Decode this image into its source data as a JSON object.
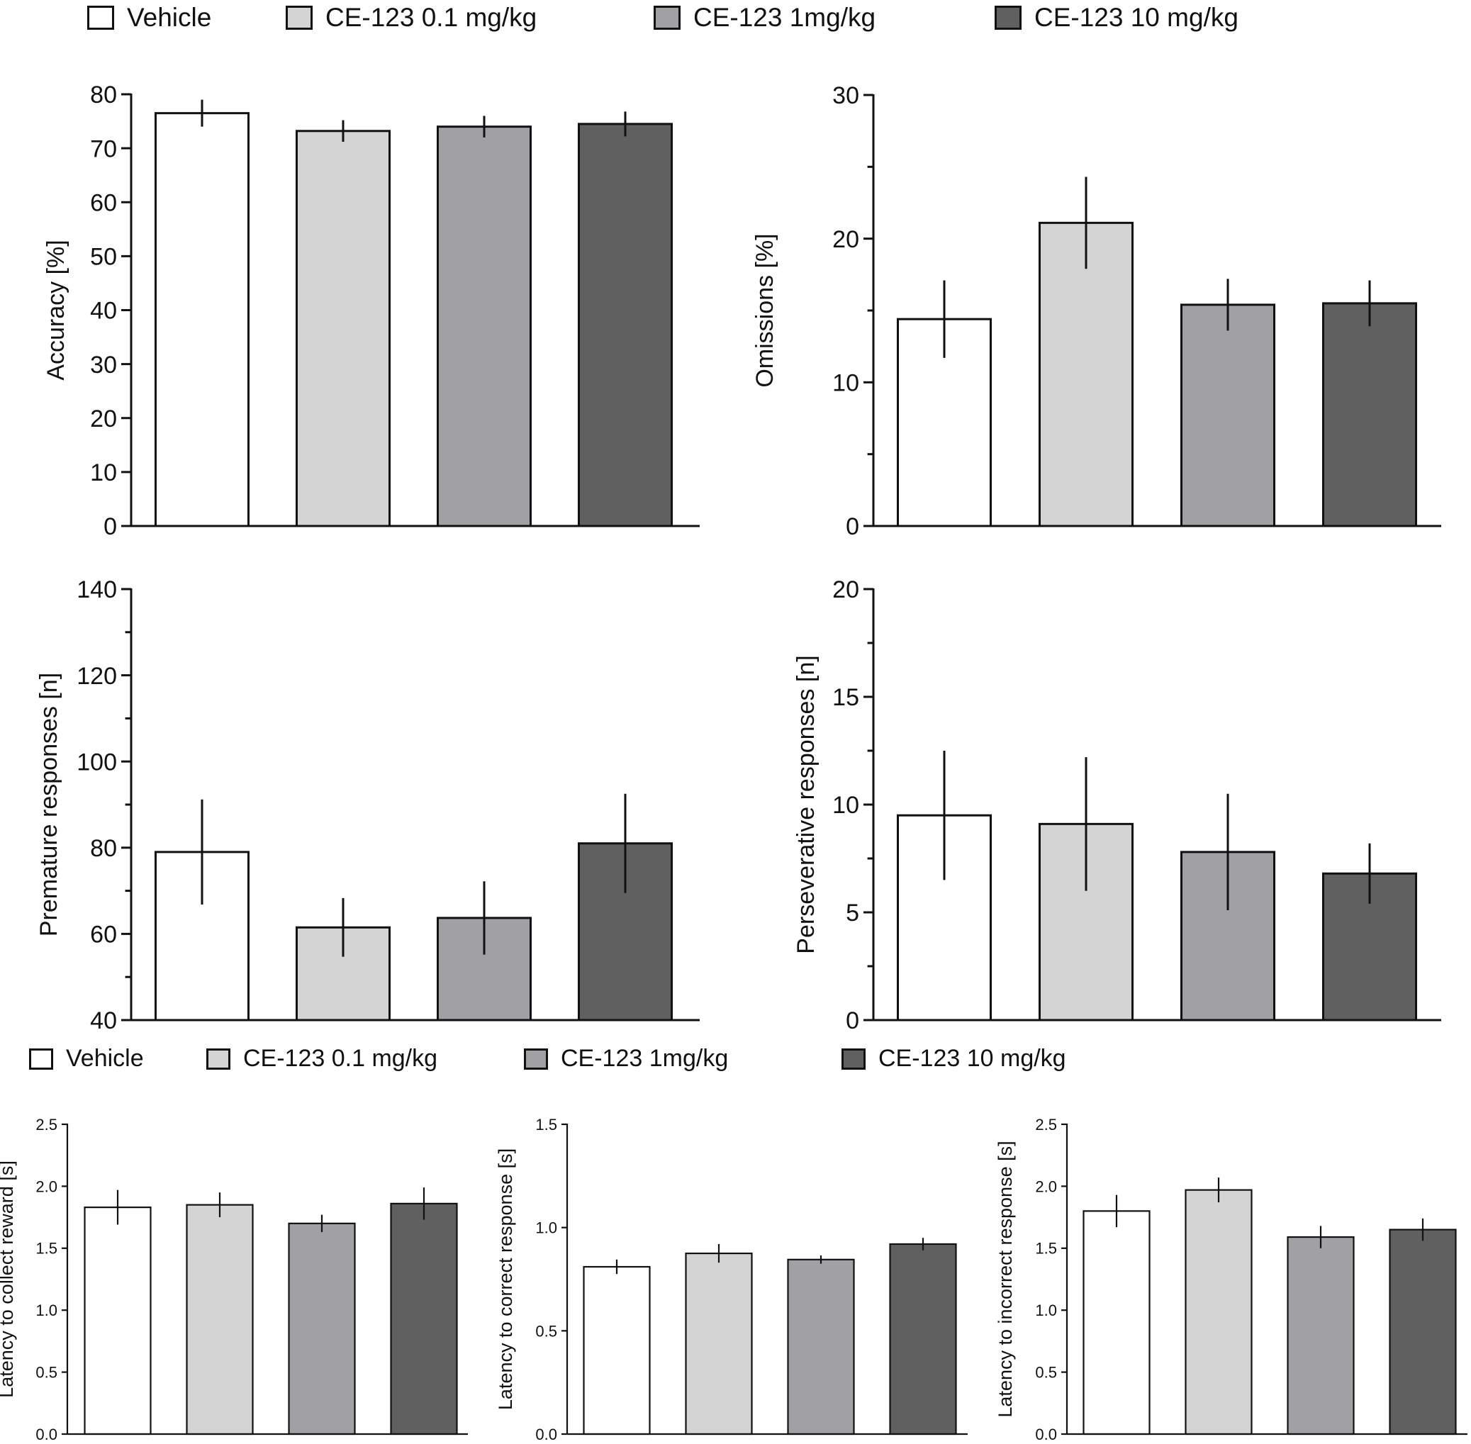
{
  "legend_top": [
    {
      "label": "Vehicle",
      "color": "#ffffff"
    },
    {
      "label": "CE-123 0.1 mg/kg",
      "color": "#d4d4d4"
    },
    {
      "label": "CE-123 1mg/kg",
      "color": "#a1a1a5"
    },
    {
      "label": "CE-123 10 mg/kg",
      "color": "#606060"
    }
  ],
  "legend_bottom": [
    {
      "label": "Vehicle",
      "color": "#ffffff"
    },
    {
      "label": "CE-123 0.1 mg/kg",
      "color": "#d4d4d4"
    },
    {
      "label": "CE-123 1mg/kg",
      "color": "#a1a1a5"
    },
    {
      "label": "CE-123 10 mg/kg",
      "color": "#606060"
    }
  ],
  "chart_data": [
    {
      "id": "accuracy",
      "type": "bar",
      "title": "",
      "xlabel": "",
      "ylabel": "Accuracy [%]",
      "categories": [
        "Vehicle",
        "CE-123 0.1 mg/kg",
        "CE-123 1mg/kg",
        "CE-123 10 mg/kg"
      ],
      "values": [
        76.5,
        73.2,
        74.0,
        74.5
      ],
      "errors": [
        2.5,
        2.0,
        2.0,
        2.3
      ],
      "ylim": [
        0,
        80
      ],
      "yticks": [
        "0",
        "10",
        "20",
        "30",
        "40",
        "50",
        "60",
        "70",
        "80"
      ],
      "minor_ticks": false
    },
    {
      "id": "omissions",
      "type": "bar",
      "title": "",
      "xlabel": "",
      "ylabel": "Omissions [%]",
      "categories": [
        "Vehicle",
        "CE-123 0.1 mg/kg",
        "CE-123 1mg/kg",
        "CE-123 10 mg/kg"
      ],
      "values": [
        14.4,
        21.1,
        15.4,
        15.5
      ],
      "errors": [
        2.7,
        3.2,
        1.8,
        1.6
      ],
      "ylim": [
        0,
        30
      ],
      "yticks": [
        "0",
        "10",
        "20",
        "30"
      ],
      "minor_ticks": true
    },
    {
      "id": "premature",
      "type": "bar",
      "title": "",
      "xlabel": "",
      "ylabel": "Premature responses [n]",
      "categories": [
        "Vehicle",
        "CE-123 0.1 mg/kg",
        "CE-123 1mg/kg",
        "CE-123 10 mg/kg"
      ],
      "values": [
        79.0,
        61.5,
        63.7,
        81.0
      ],
      "errors": [
        12.2,
        6.8,
        8.5,
        11.5
      ],
      "ylim": [
        40,
        140
      ],
      "yticks": [
        "40",
        "60",
        "80",
        "100",
        "120",
        "140"
      ],
      "minor_ticks": true
    },
    {
      "id": "perseverative",
      "type": "bar",
      "title": "",
      "xlabel": "",
      "ylabel": "Perseverative responses [n]",
      "categories": [
        "Vehicle",
        "CE-123 0.1 mg/kg",
        "CE-123 1mg/kg",
        "CE-123 10 mg/kg"
      ],
      "values": [
        9.5,
        9.1,
        7.8,
        6.8
      ],
      "errors": [
        3.0,
        3.1,
        2.7,
        1.4
      ],
      "ylim": [
        0,
        20
      ],
      "yticks": [
        "0",
        "5",
        "10",
        "15",
        "20"
      ],
      "minor_ticks": true
    },
    {
      "id": "latency-reward",
      "type": "bar",
      "title": "",
      "xlabel": "",
      "ylabel": "Latency to collect reward [s]",
      "categories": [
        "Vehicle",
        "CE-123 0.1 mg/kg",
        "CE-123 1mg/kg",
        "CE-123 10 mg/kg"
      ],
      "values": [
        1.83,
        1.85,
        1.7,
        1.86
      ],
      "errors": [
        0.14,
        0.1,
        0.07,
        0.13
      ],
      "ylim": [
        0,
        2.5
      ],
      "yticks": [
        "0.0",
        "0.5",
        "1.0",
        "1.5",
        "2.0",
        "2.5"
      ],
      "minor_ticks": false
    },
    {
      "id": "latency-correct",
      "type": "bar",
      "title": "",
      "xlabel": "",
      "ylabel": "Latency to correct response [s]",
      "categories": [
        "Vehicle",
        "CE-123 0.1 mg/kg",
        "CE-123 1mg/kg",
        "CE-123 10 mg/kg"
      ],
      "values": [
        0.81,
        0.875,
        0.845,
        0.92
      ],
      "errors": [
        0.035,
        0.045,
        0.02,
        0.03
      ],
      "ylim": [
        0,
        1.5
      ],
      "yticks": [
        "0.0",
        "0.5",
        "1.0",
        "1.5"
      ],
      "minor_ticks": false
    },
    {
      "id": "latency-incorrect",
      "type": "bar",
      "title": "",
      "xlabel": "",
      "ylabel": "Latency to incorrect response [s]",
      "categories": [
        "Vehicle",
        "CE-123 0.1 mg/kg",
        "CE-123 1mg/kg",
        "CE-123 10 mg/kg"
      ],
      "values": [
        1.8,
        1.97,
        1.59,
        1.65
      ],
      "errors": [
        0.13,
        0.1,
        0.09,
        0.09
      ],
      "ylim": [
        0,
        2.5
      ],
      "yticks": [
        "0.0",
        "0.5",
        "1.0",
        "1.5",
        "2.0",
        "2.5"
      ],
      "minor_ticks": false
    }
  ]
}
